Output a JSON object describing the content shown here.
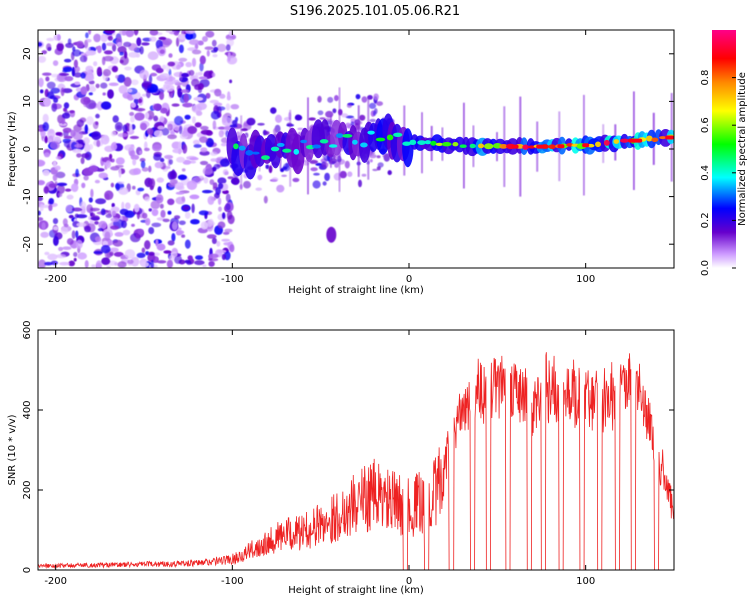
{
  "title": "S196.2025.101.05.06.R21",
  "chart_data": [
    {
      "type": "heatmap",
      "name": "spectrogram",
      "xlabel": "Height of straight line (km)",
      "ylabel": "Frequency (Hz)",
      "xlim": [
        -210,
        150
      ],
      "ylim": [
        -25,
        25
      ],
      "xticks": [
        -200,
        -100,
        0,
        100
      ],
      "yticks": [
        -20,
        -10,
        0,
        10,
        20
      ],
      "colorbar": {
        "label": "Normalized spectral amplitude",
        "range": [
          0,
          1
        ],
        "ticks": [
          "0.0",
          "0.2",
          "0.4",
          "0.6",
          "0.8"
        ],
        "colors": [
          "#ffffff",
          "#cc99ff",
          "#6600cc",
          "#0000ff",
          "#00ffff",
          "#00ff00",
          "#ffff00",
          "#ff8800",
          "#ff0000",
          "#ff0088"
        ]
      },
      "ridge_frequency_hz": [
        [
          -100,
          0
        ],
        [
          -90,
          -1.5
        ],
        [
          -80,
          -1
        ],
        [
          -70,
          0
        ],
        [
          -60,
          0.5
        ],
        [
          -50,
          1
        ],
        [
          -40,
          2
        ],
        [
          -30,
          1.5
        ],
        [
          -20,
          2.5
        ],
        [
          -10,
          2.5
        ],
        [
          0,
          1.5
        ],
        [
          20,
          1
        ],
        [
          40,
          0.5
        ],
        [
          60,
          0.5
        ],
        [
          80,
          0.5
        ],
        [
          100,
          0.8
        ],
        [
          120,
          1.5
        ],
        [
          150,
          2.5
        ]
      ]
    },
    {
      "type": "line",
      "name": "snr",
      "xlabel": "Height of straight line (km)",
      "ylabel": "SNR (10 * v/v)",
      "xlim": [
        -210,
        150
      ],
      "ylim": [
        0,
        600
      ],
      "xticks": [
        -200,
        -100,
        0,
        100
      ],
      "yticks": [
        0,
        200,
        400,
        600
      ],
      "color": "#ee2222",
      "envelope": [
        [
          -210,
          15
        ],
        [
          -160,
          20
        ],
        [
          -120,
          25
        ],
        [
          -100,
          40
        ],
        [
          -90,
          70
        ],
        [
          -80,
          110
        ],
        [
          -70,
          130
        ],
        [
          -60,
          140
        ],
        [
          -50,
          170
        ],
        [
          -40,
          200
        ],
        [
          -30,
          250
        ],
        [
          -20,
          280
        ],
        [
          -10,
          250
        ],
        [
          0,
          230
        ],
        [
          10,
          260
        ],
        [
          20,
          330
        ],
        [
          30,
          450
        ],
        [
          40,
          530
        ],
        [
          50,
          540
        ],
        [
          60,
          520
        ],
        [
          70,
          500
        ],
        [
          80,
          550
        ],
        [
          90,
          520
        ],
        [
          100,
          510
        ],
        [
          110,
          490
        ],
        [
          120,
          530
        ],
        [
          130,
          540
        ],
        [
          140,
          350
        ],
        [
          150,
          170
        ]
      ],
      "dropouts_x": [
        -2,
        10,
        24,
        36,
        45,
        56,
        68,
        76,
        86,
        98,
        108,
        118,
        127,
        140
      ]
    }
  ]
}
